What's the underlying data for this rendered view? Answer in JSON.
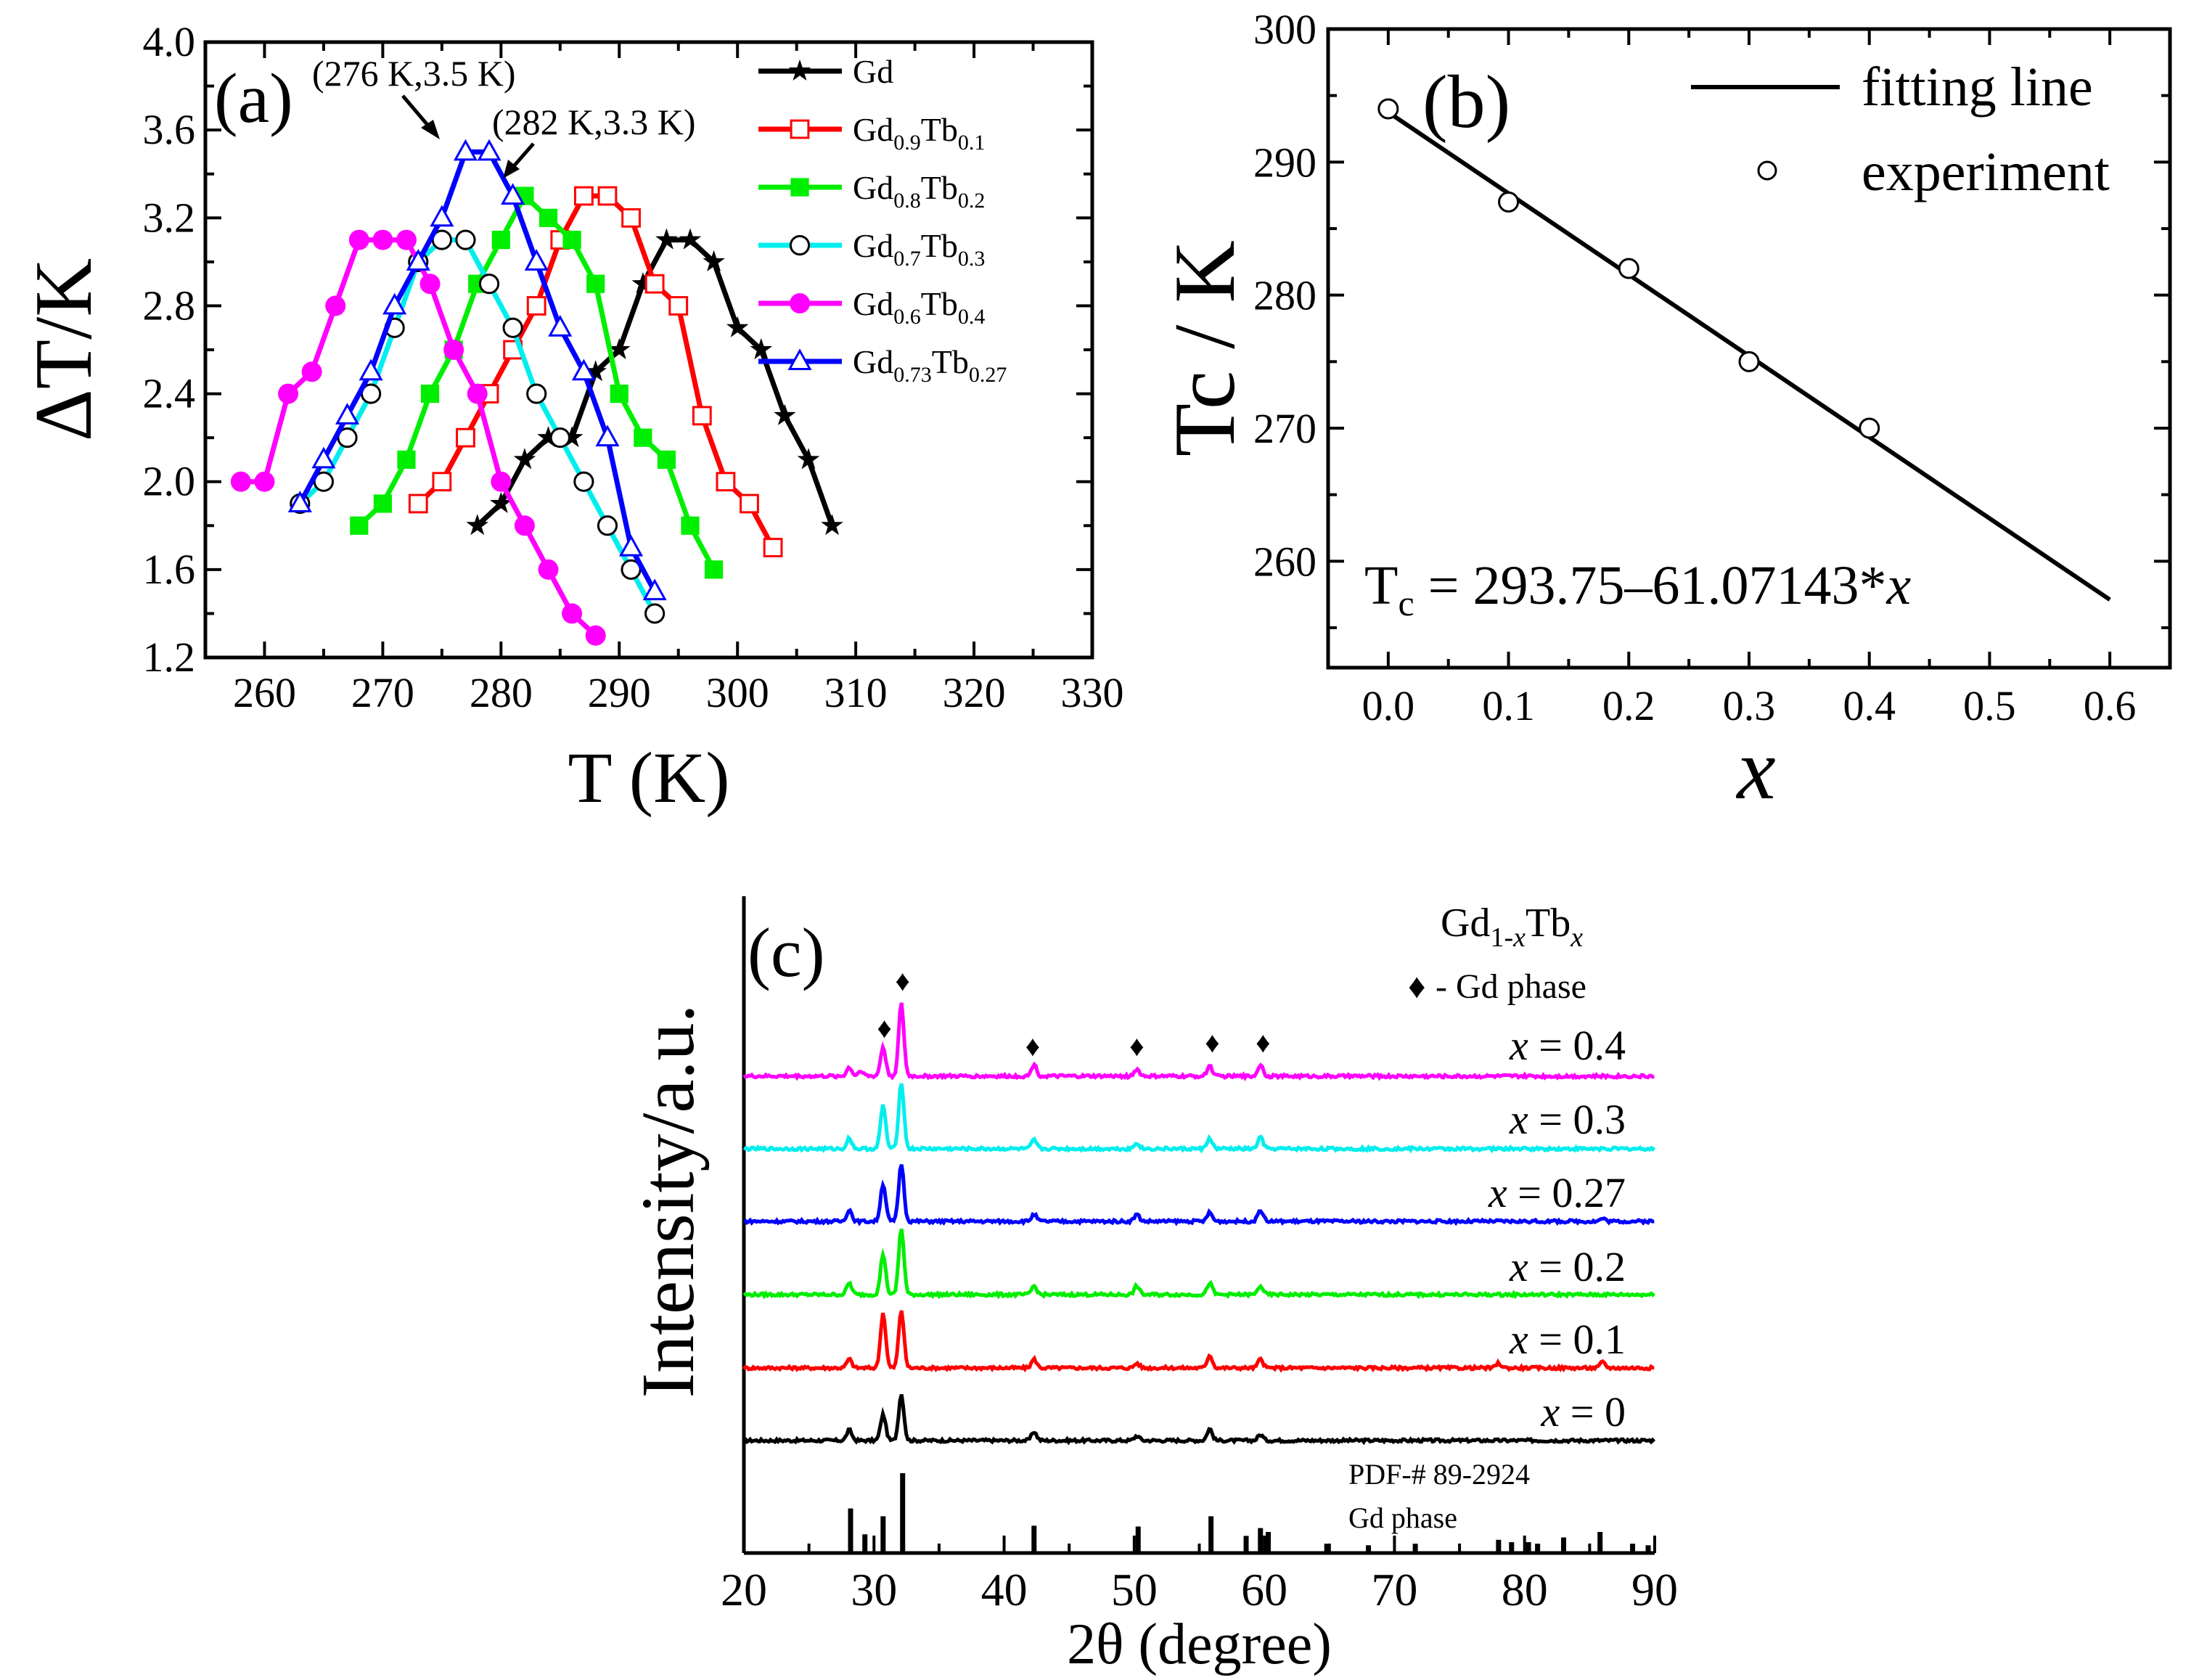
{
  "chart_data": [
    {
      "panel_label": "(a)",
      "type": "line",
      "xlabel": "T (K)",
      "ylabel": "ΔT/K",
      "xlim": [
        255,
        330
      ],
      "ylim": [
        1.2,
        4.0
      ],
      "xticks": [
        "260",
        "270",
        "280",
        "290",
        "300",
        "310",
        "320",
        "330"
      ],
      "yticks": [
        "1.2",
        "1.6",
        "2.0",
        "2.4",
        "2.8",
        "3.2",
        "3.6",
        "4.0"
      ],
      "legend_position": "top-right",
      "annotations": [
        "(276 K,3.5 K)",
        "(282 K,3.3 K)"
      ],
      "series": [
        {
          "name": "Gd",
          "legend": {
            "base": "Gd",
            "parts": []
          },
          "color": "#000000",
          "marker": "star",
          "x": [
            278,
            280,
            282,
            284,
            286,
            288,
            290,
            292,
            294,
            296,
            298,
            300,
            302,
            304,
            306,
            308
          ],
          "y": [
            1.8,
            1.9,
            2.1,
            2.2,
            2.2,
            2.5,
            2.6,
            2.9,
            3.1,
            3.1,
            3.0,
            2.7,
            2.6,
            2.3,
            2.1,
            1.8
          ]
        },
        {
          "name": "Gd0.9Tb0.1",
          "legend": {
            "base": "Gd",
            "parts": [
              [
                "0.9",
                "sub"
              ],
              [
                "Tb",
                "n"
              ],
              [
                "0.1",
                "sub"
              ]
            ]
          },
          "color": "#ff0000",
          "marker": "square-open",
          "x": [
            273,
            275,
            277,
            279,
            281,
            283,
            285,
            287,
            289,
            291,
            293,
            295,
            297,
            299,
            301,
            303
          ],
          "y": [
            1.9,
            2.0,
            2.2,
            2.4,
            2.6,
            2.8,
            3.1,
            3.3,
            3.3,
            3.2,
            2.9,
            2.8,
            2.3,
            2.0,
            1.9,
            1.7
          ]
        },
        {
          "name": "Gd0.8Tb0.2",
          "legend": {
            "base": "Gd",
            "parts": [
              [
                "0.8",
                "sub"
              ],
              [
                "Tb",
                "n"
              ],
              [
                "0.2",
                "sub"
              ]
            ]
          },
          "color": "#00ee00",
          "marker": "square-filled",
          "x": [
            268,
            270,
            272,
            274,
            276,
            278,
            280,
            282,
            284,
            286,
            288,
            290,
            292,
            294,
            296,
            298
          ],
          "y": [
            1.8,
            1.9,
            2.1,
            2.4,
            2.6,
            2.9,
            3.1,
            3.3,
            3.2,
            3.1,
            2.9,
            2.4,
            2.2,
            2.1,
            1.8,
            1.6
          ]
        },
        {
          "name": "Gd0.7Tb0.3",
          "legend": {
            "base": "Gd",
            "parts": [
              [
                "0.7",
                "sub"
              ],
              [
                "Tb",
                "n"
              ],
              [
                "0.3",
                "sub"
              ]
            ]
          },
          "color": "#00eeee",
          "marker": "circle-open",
          "x": [
            263,
            265,
            267,
            269,
            271,
            273,
            275,
            277,
            279,
            281,
            283,
            285,
            287,
            289,
            291,
            293
          ],
          "y": [
            1.9,
            2.0,
            2.2,
            2.4,
            2.7,
            3.0,
            3.1,
            3.1,
            2.9,
            2.7,
            2.4,
            2.2,
            2.0,
            1.8,
            1.6,
            1.4
          ]
        },
        {
          "name": "Gd0.6Tb0.4",
          "legend": {
            "base": "Gd",
            "parts": [
              [
                "0.6",
                "sub"
              ],
              [
                "Tb",
                "n"
              ],
              [
                "0.4",
                "sub"
              ]
            ]
          },
          "color": "#ff00ff",
          "marker": "circle-filled",
          "x": [
            258,
            260,
            262,
            264,
            266,
            268,
            270,
            272,
            274,
            276,
            278,
            280,
            282,
            284,
            286,
            288
          ],
          "y": [
            2.0,
            2.0,
            2.4,
            2.5,
            2.8,
            3.1,
            3.1,
            3.1,
            2.9,
            2.6,
            2.4,
            2.0,
            1.8,
            1.6,
            1.4,
            1.3
          ]
        },
        {
          "name": "Gd0.73Tb0.27",
          "legend": {
            "base": "Gd",
            "parts": [
              [
                "0.73",
                "sub"
              ],
              [
                "Tb",
                "n"
              ],
              [
                "0.27",
                "sub"
              ]
            ]
          },
          "color": "#0000ff",
          "marker": "triangle-open",
          "x": [
            263,
            265,
            267,
            269,
            271,
            273,
            275,
            277,
            279,
            281,
            283,
            285,
            287,
            289,
            291,
            293
          ],
          "y": [
            1.9,
            2.1,
            2.3,
            2.5,
            2.8,
            3.0,
            3.2,
            3.5,
            3.5,
            3.3,
            3.0,
            2.7,
            2.5,
            2.2,
            1.7,
            1.5
          ]
        }
      ]
    },
    {
      "panel_label": "(b)",
      "type": "scatter",
      "xlabel": "x",
      "ylabel": "Tc / K",
      "xlim": [
        -0.05,
        0.65
      ],
      "ylim": [
        252,
        300
      ],
      "xticks": [
        "0.0",
        "0.1",
        "0.2",
        "0.3",
        "0.4",
        "0.5",
        "0.6"
      ],
      "yticks": [
        "260",
        "270",
        "280",
        "290",
        "300"
      ],
      "legend_position": "top-right",
      "series": [
        {
          "name": "fitting line",
          "type": "line",
          "color": "#000000",
          "x": [
            0.0,
            0.6
          ],
          "y": [
            293.75,
            257.11
          ]
        },
        {
          "name": "experiment",
          "type": "scatter",
          "marker": "circle-open",
          "color": "#000000",
          "x": [
            0.0,
            0.1,
            0.2,
            0.3,
            0.4
          ],
          "y": [
            294,
            287,
            282,
            275,
            270
          ]
        }
      ],
      "equation": {
        "lhs": "T",
        "lhs_sub": "c",
        "rhs": " = 293.75–61.07143*",
        "var": "x"
      }
    },
    {
      "panel_label": "(c)",
      "type": "line",
      "xlabel": "2θ (degree)",
      "ylabel": "Intensity/a.u.",
      "xlim": [
        20,
        90
      ],
      "xticks": [
        "20",
        "30",
        "40",
        "50",
        "60",
        "70",
        "80",
        "90"
      ],
      "legend_title": {
        "base": "Gd",
        "sub1": "1-",
        "sub1_var": "x",
        "mid": "Tb",
        "sub2_var": "x"
      },
      "phase_marker": {
        "symbol": "♦",
        "label": "- Gd phase",
        "positions": [
          30.8,
          32.2,
          42.2,
          50.2,
          56.0,
          59.9
        ]
      },
      "reference": {
        "line1": "PDF-# 89-2924",
        "line2": "Gd phase",
        "peaks": [
          [
            28.2,
            0.55
          ],
          [
            29.3,
            0.22
          ],
          [
            30.7,
            0.45
          ],
          [
            32.2,
            1.0
          ],
          [
            42.3,
            0.33
          ],
          [
            50.3,
            0.32
          ],
          [
            55.9,
            0.45
          ],
          [
            58.6,
            0.2
          ],
          [
            59.7,
            0.3
          ],
          [
            60.3,
            0.25
          ],
          [
            64.8,
            0.1
          ],
          [
            68.0,
            0.08
          ],
          [
            71.6,
            0.1
          ],
          [
            78.0,
            0.15
          ],
          [
            79.0,
            0.12
          ],
          [
            80.3,
            0.12
          ],
          [
            81.0,
            0.1
          ],
          [
            83.0,
            0.18
          ],
          [
            85.8,
            0.25
          ],
          [
            88.3,
            0.1
          ],
          [
            89.5,
            0.08
          ]
        ]
      },
      "series": [
        {
          "name": "x = 0",
          "var": "x",
          "value": "0",
          "color": "#000000",
          "peaks": [
            [
              28.1,
              0.18
            ],
            [
              30.7,
              0.45
            ],
            [
              32.1,
              0.8
            ],
            [
              42.3,
              0.15
            ],
            [
              50.2,
              0.08
            ],
            [
              55.8,
              0.2
            ],
            [
              59.7,
              0.1
            ]
          ]
        },
        {
          "name": "x = 0.1",
          "var": "x",
          "value": "0.1",
          "color": "#ff0000",
          "peaks": [
            [
              28.1,
              0.15
            ],
            [
              30.7,
              0.95
            ],
            [
              32.1,
              1.0
            ],
            [
              42.3,
              0.15
            ],
            [
              50.2,
              0.08
            ],
            [
              55.8,
              0.22
            ],
            [
              59.7,
              0.15
            ],
            [
              78.0,
              0.08
            ],
            [
              86.0,
              0.1
            ]
          ]
        },
        {
          "name": "x = 0.2",
          "var": "x",
          "value": "0.2",
          "color": "#00ee00",
          "peaks": [
            [
              28.1,
              0.2
            ],
            [
              30.7,
              0.7
            ],
            [
              32.1,
              1.15
            ],
            [
              42.3,
              0.15
            ],
            [
              50.2,
              0.15
            ],
            [
              55.8,
              0.2
            ],
            [
              59.7,
              0.15
            ]
          ]
        },
        {
          "name": "x = 0.27",
          "var": "x",
          "value": "0.27",
          "color": "#0000ff",
          "peaks": [
            [
              28.1,
              0.2
            ],
            [
              30.7,
              0.65
            ],
            [
              32.1,
              1.0
            ],
            [
              42.3,
              0.12
            ],
            [
              50.2,
              0.12
            ],
            [
              55.8,
              0.15
            ],
            [
              59.7,
              0.2
            ],
            [
              86.0,
              0.05
            ]
          ]
        },
        {
          "name": "x = 0.3",
          "var": "x",
          "value": "0.3",
          "color": "#00eeee",
          "peaks": [
            [
              28.1,
              0.18
            ],
            [
              30.7,
              0.75
            ],
            [
              32.1,
              1.15
            ],
            [
              42.3,
              0.15
            ],
            [
              50.2,
              0.1
            ],
            [
              55.8,
              0.18
            ],
            [
              59.7,
              0.2
            ]
          ]
        },
        {
          "name": "x = 0.4",
          "var": "x",
          "value": "0.4",
          "color": "#ff00ff",
          "peaks": [
            [
              28.1,
              0.15
            ],
            [
              29.0,
              0.1
            ],
            [
              30.7,
              0.5
            ],
            [
              32.1,
              1.25
            ],
            [
              42.3,
              0.2
            ],
            [
              50.2,
              0.12
            ],
            [
              55.8,
              0.18
            ],
            [
              59.7,
              0.2
            ]
          ]
        }
      ]
    }
  ]
}
